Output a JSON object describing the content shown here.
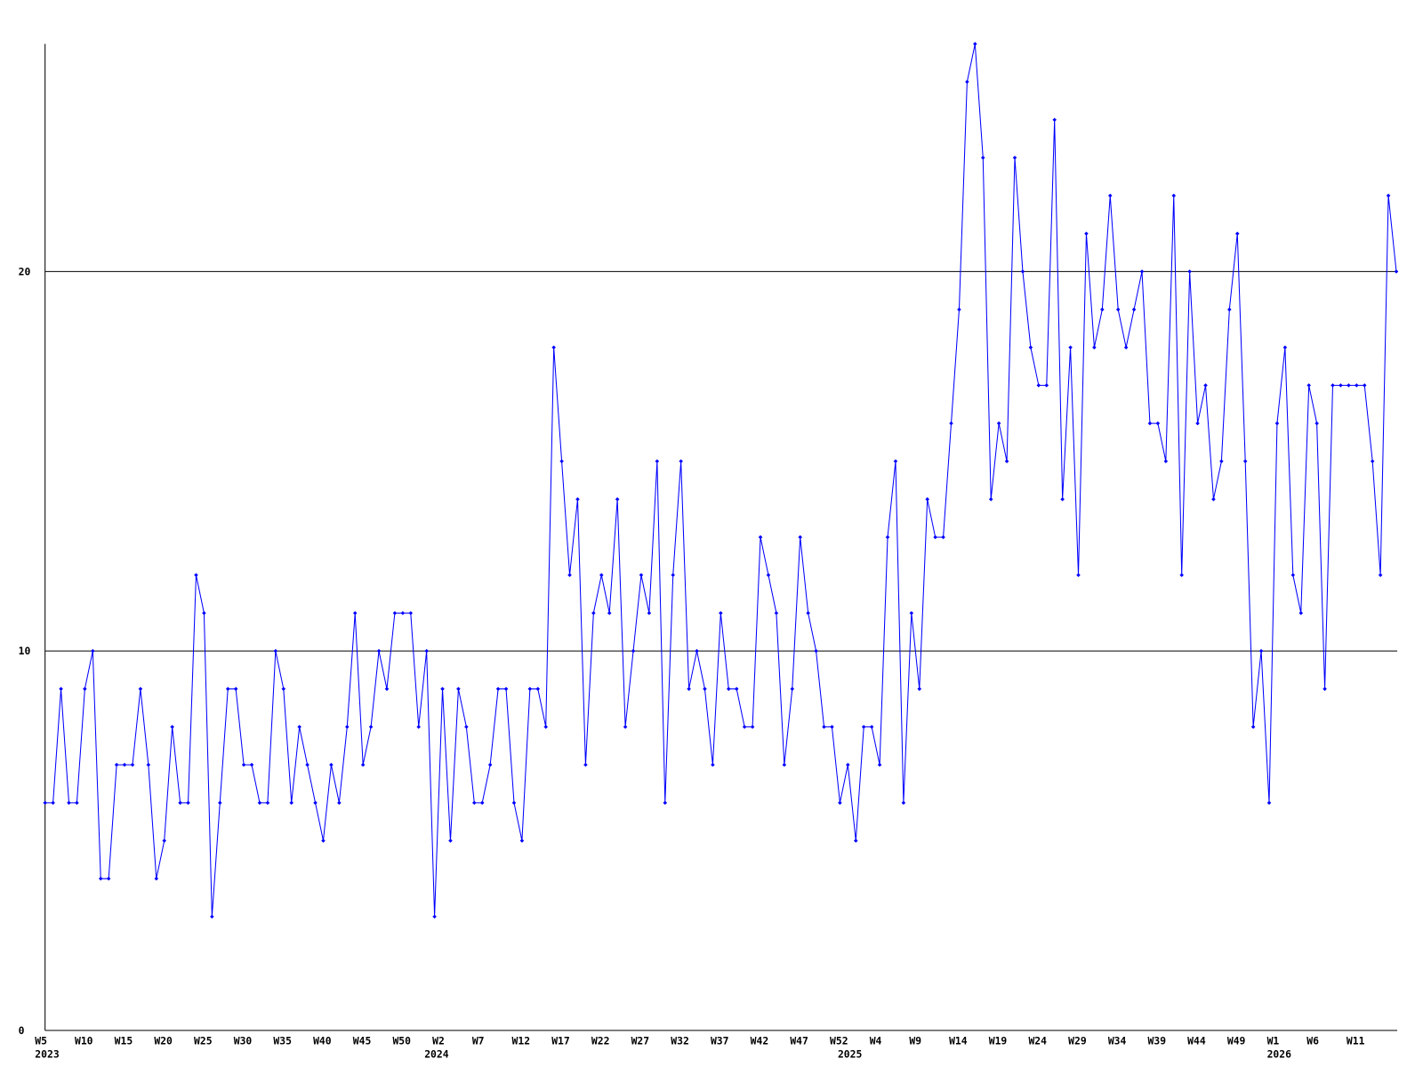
{
  "chart_data": {
    "type": "line",
    "categories": [
      "W5",
      null,
      null,
      null,
      null,
      "W10",
      null,
      null,
      null,
      null,
      "W15",
      null,
      null,
      null,
      null,
      "W20",
      null,
      null,
      null,
      null,
      "W25",
      null,
      null,
      null,
      null,
      "W30",
      null,
      null,
      null,
      null,
      "W35",
      null,
      null,
      null,
      null,
      "W40",
      null,
      null,
      null,
      null,
      "W45",
      null,
      null,
      null,
      null,
      "W50",
      null,
      null,
      null,
      null,
      "W2",
      null,
      null,
      null,
      null,
      "W7",
      null,
      null,
      null,
      null,
      "W12",
      null,
      null,
      null,
      null,
      "W17",
      null,
      null,
      null,
      null,
      "W22",
      null,
      null,
      null,
      null,
      "W27",
      null,
      null,
      null,
      null,
      "W32",
      null,
      null,
      null,
      null,
      "W37",
      null,
      null,
      null,
      null,
      "W42",
      null,
      null,
      null,
      null,
      "W47",
      null,
      null,
      null,
      null,
      "W52",
      null,
      null,
      null,
      null,
      "W4",
      null,
      null,
      null,
      null,
      "W9",
      null,
      null,
      null,
      null,
      "W14",
      null,
      null,
      null,
      null,
      "W19",
      null,
      null,
      null,
      null,
      "W24",
      null,
      null,
      null,
      null,
      "W29",
      null,
      null,
      null,
      null,
      "W34",
      null,
      null,
      null,
      null,
      "W39",
      null,
      null,
      null,
      null,
      "W44",
      null,
      null,
      null,
      null,
      "W49",
      null,
      null,
      null,
      null,
      "W1",
      null,
      null,
      null,
      null,
      "W6",
      null,
      null,
      null,
      null,
      "W11",
      null,
      null,
      null,
      null,
      null
    ],
    "years": [
      "2023",
      null,
      null,
      null,
      null,
      null,
      null,
      null,
      null,
      null,
      null,
      null,
      null,
      null,
      null,
      null,
      null,
      null,
      null,
      null,
      null,
      null,
      null,
      null,
      null,
      null,
      null,
      null,
      null,
      null,
      null,
      null,
      null,
      null,
      null,
      null,
      null,
      null,
      null,
      null,
      null,
      null,
      null,
      null,
      null,
      null,
      null,
      null,
      null,
      "2024",
      null,
      null,
      null,
      null,
      null,
      null,
      null,
      null,
      null,
      null,
      null,
      null,
      null,
      null,
      null,
      null,
      null,
      null,
      null,
      null,
      null,
      null,
      null,
      null,
      null,
      null,
      null,
      null,
      null,
      null,
      null,
      null,
      null,
      null,
      null,
      null,
      null,
      null,
      null,
      null,
      null,
      null,
      null,
      null,
      null,
      null,
      null,
      null,
      null,
      null,
      null,
      "2025",
      null,
      null,
      null,
      null,
      null,
      null,
      null,
      null,
      null,
      null,
      null,
      null,
      null,
      null,
      null,
      null,
      null,
      null,
      null,
      null,
      null,
      null,
      null,
      null,
      null,
      null,
      null,
      null,
      null,
      null,
      null,
      null,
      null,
      null,
      null,
      null,
      null,
      null,
      null,
      null,
      null,
      null,
      null,
      null,
      null,
      null,
      null,
      null,
      null,
      null,
      null,
      null,
      null,
      "2026",
      null,
      null,
      null,
      null,
      null,
      null,
      null,
      null,
      null,
      null,
      null,
      null,
      null,
      null,
      null
    ],
    "values": [
      6,
      6,
      9,
      6,
      6,
      9,
      10,
      4,
      4,
      7,
      7,
      7,
      9,
      7,
      4,
      5,
      8,
      6,
      6,
      12,
      11,
      3,
      6,
      9,
      9,
      7,
      7,
      6,
      6,
      10,
      9,
      6,
      8,
      7,
      6,
      5,
      7,
      6,
      8,
      11,
      7,
      8,
      10,
      9,
      11,
      11,
      11,
      8,
      10,
      3,
      9,
      5,
      9,
      8,
      6,
      6,
      7,
      9,
      9,
      6,
      5,
      9,
      9,
      8,
      18,
      15,
      12,
      14,
      7,
      11,
      12,
      11,
      14,
      8,
      10,
      12,
      11,
      15,
      6,
      12,
      15,
      9,
      10,
      9,
      7,
      11,
      9,
      9,
      8,
      8,
      13,
      12,
      11,
      7,
      9,
      13,
      11,
      10,
      8,
      8,
      6,
      7,
      5,
      8,
      8,
      7,
      13,
      15,
      6,
      11,
      9,
      14,
      13,
      13,
      16,
      19,
      25,
      26,
      23,
      14,
      16,
      15,
      23,
      20,
      18,
      17,
      17,
      24,
      14,
      18,
      12,
      21,
      18,
      19,
      22,
      19,
      18,
      19,
      20,
      16,
      16,
      15,
      22,
      12,
      20,
      16,
      17,
      14,
      15,
      19,
      21,
      15,
      8,
      10,
      6,
      16,
      18,
      12,
      11,
      17,
      16,
      9,
      17,
      17,
      17,
      17,
      17,
      15,
      12,
      22,
      20
    ],
    "color": "#0000ff",
    "ylim": [
      0,
      26
    ],
    "yticks": [
      0,
      10,
      20
    ],
    "grid": true
  }
}
